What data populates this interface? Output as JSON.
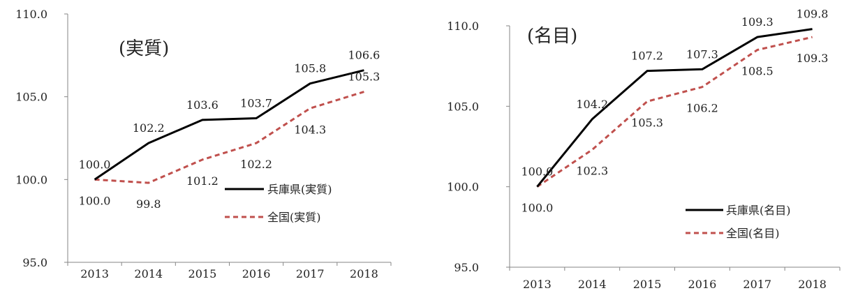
{
  "chart_data": [
    {
      "type": "line",
      "title": "(実質)",
      "categories": [
        "2013",
        "2014",
        "2015",
        "2016",
        "2017",
        "2018"
      ],
      "ylim": [
        95.0,
        110.0
      ],
      "yticks": [
        "95.0",
        "100.0",
        "105.0",
        "110.0"
      ],
      "ytick_values": [
        95,
        100,
        105,
        110
      ],
      "series": [
        {
          "name": "兵庫県(実質)",
          "color": "#000000",
          "dash": "solid",
          "values": [
            100.0,
            102.2,
            103.6,
            103.7,
            105.8,
            106.6
          ],
          "labels": [
            "100.0",
            "102.2",
            "103.6",
            "103.7",
            "105.8",
            "106.6"
          ],
          "label_side": [
            "above",
            "above",
            "above",
            "above",
            "above",
            "above"
          ]
        },
        {
          "name": "全国(実質)",
          "color": "#c0504d",
          "dash": "dashed",
          "values": [
            100.0,
            99.8,
            101.2,
            102.2,
            104.3,
            105.3
          ],
          "labels": [
            "100.0",
            "99.8",
            "101.2",
            "102.2",
            "104.3",
            "105.3"
          ],
          "label_side": [
            "below",
            "below",
            "below",
            "below",
            "below",
            "above"
          ]
        }
      ],
      "legend": "bottom-right",
      "grid": false
    },
    {
      "type": "line",
      "title": "(名目)",
      "categories": [
        "2013",
        "2014",
        "2015",
        "2016",
        "2017",
        "2018"
      ],
      "ylim": [
        95.0,
        110.0
      ],
      "yticks": [
        "95.0",
        "100.0",
        "105.0",
        "110.0"
      ],
      "ytick_values": [
        95,
        100,
        105,
        110
      ],
      "series": [
        {
          "name": "兵庫県(名目)",
          "color": "#000000",
          "dash": "solid",
          "values": [
            100.0,
            104.2,
            107.2,
            107.3,
            109.3,
            109.8
          ],
          "labels": [
            "100.0",
            "104.2",
            "107.2",
            "107.3",
            "109.3",
            "109.8"
          ],
          "label_side": [
            "above",
            "above",
            "above",
            "above",
            "above",
            "above"
          ]
        },
        {
          "name": "全国(名目)",
          "color": "#c0504d",
          "dash": "dashed",
          "values": [
            100.0,
            102.3,
            105.3,
            106.2,
            108.5,
            109.3
          ],
          "labels": [
            "100.0",
            "102.3",
            "105.3",
            "106.2",
            "108.5",
            "109.3"
          ],
          "label_side": [
            "below",
            "below",
            "below",
            "below",
            "below",
            "below"
          ]
        }
      ],
      "legend": "bottom-right",
      "grid": false
    }
  ]
}
